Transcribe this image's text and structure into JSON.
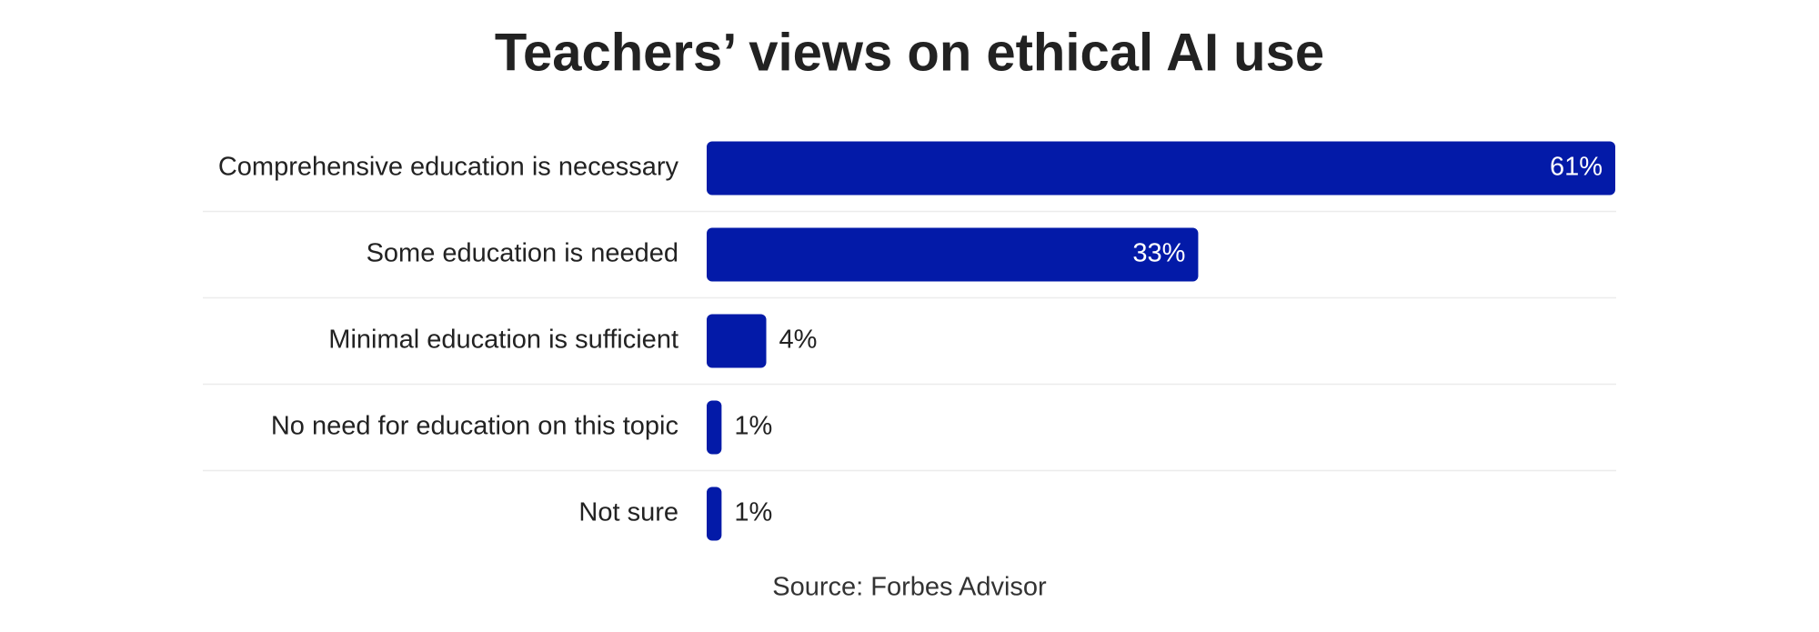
{
  "chart_data": {
    "type": "bar",
    "orientation": "horizontal",
    "title": "Teachers’ views on ethical AI use",
    "categories": [
      "Comprehensive education is necessary",
      "Some education is needed",
      "Minimal education is sufficient",
      "No need for education on this topic",
      "Not sure"
    ],
    "values": [
      61,
      33,
      4,
      1,
      1
    ],
    "value_labels": [
      "61%",
      "33%",
      "4%",
      "1%",
      "1%"
    ],
    "color": "#031aa8",
    "source": "Source: Forbes Advisor"
  }
}
